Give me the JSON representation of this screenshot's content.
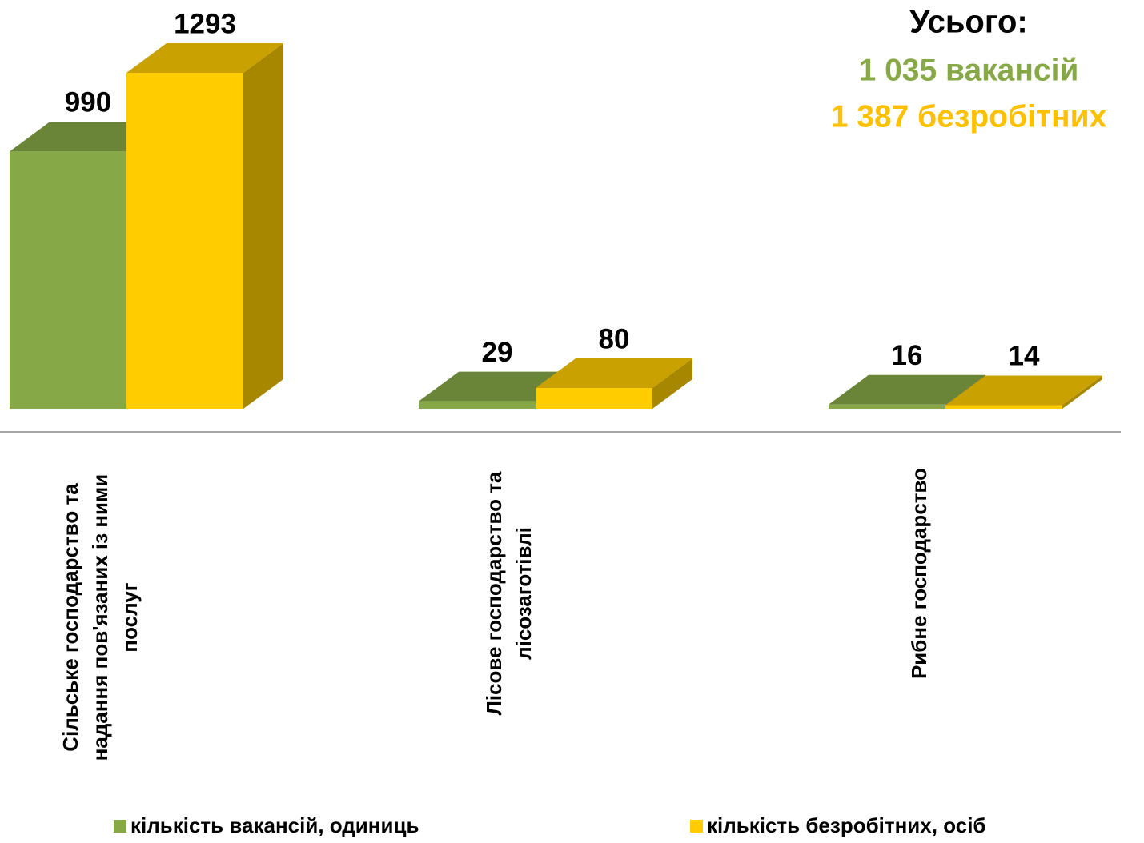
{
  "chart_data": {
    "type": "bar3d",
    "categories": [
      "Сільське господарство та надання пов'язаних із ними послуг",
      "Лісове господарство та лісозаготівлі",
      "Рибне господарство"
    ],
    "series": [
      {
        "name": "кількість вакансій, одиниць",
        "color": "#86a846",
        "values": [
          990,
          29,
          16
        ]
      },
      {
        "name": "кількість безробітних, осіб",
        "color": "#ffcc00",
        "values": [
          1293,
          80,
          14
        ]
      }
    ],
    "annotations": [
      "Усього:",
      "1 035 вакансій",
      "1 387 безробітних"
    ]
  }
}
